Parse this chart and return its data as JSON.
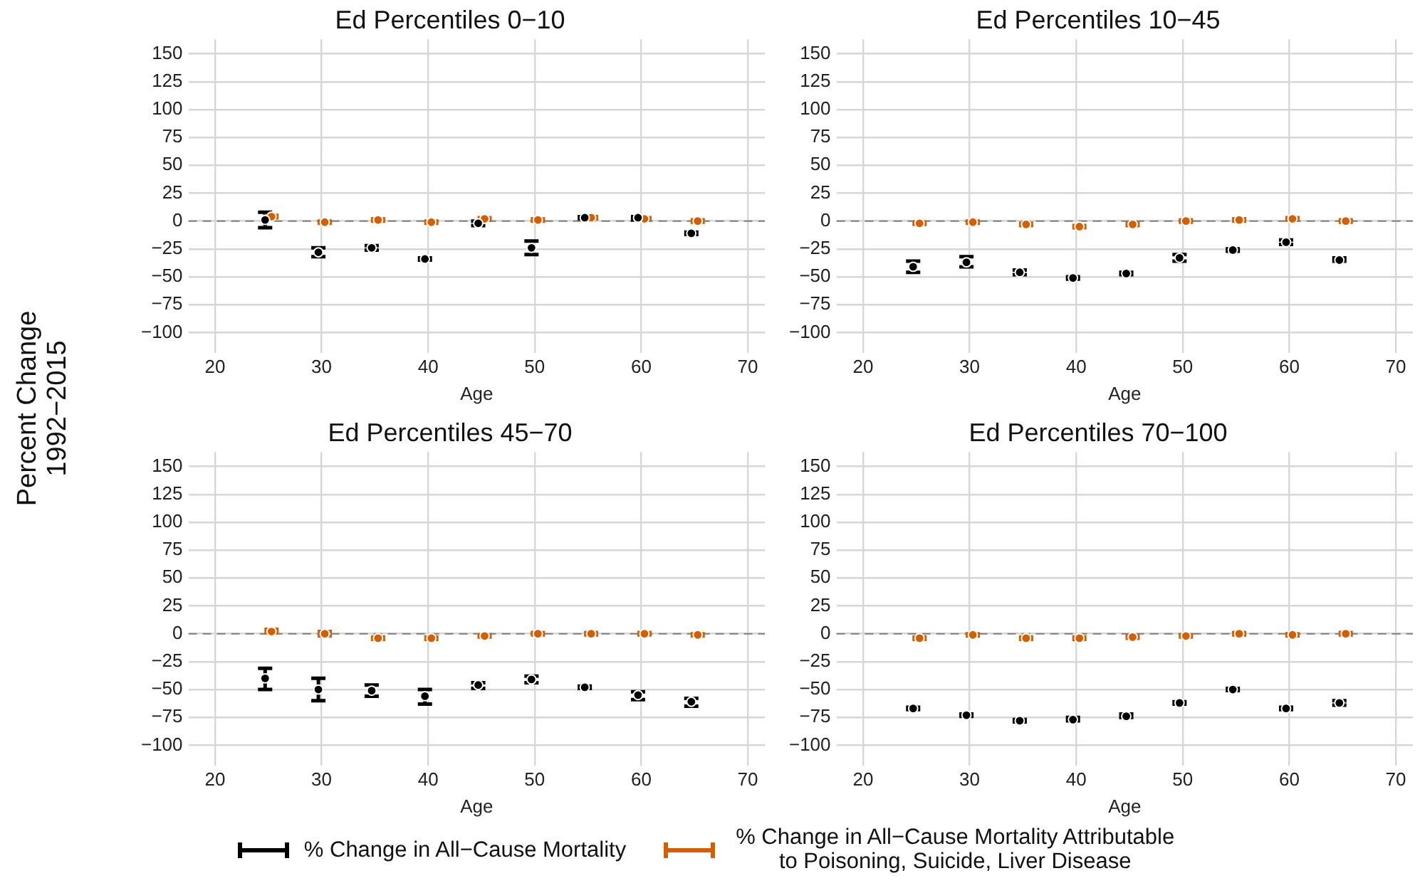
{
  "chart_data": [
    {
      "type": "scatter",
      "title": "Ed Percentiles 0−10",
      "xlabel": "Age",
      "ylabel": "Percent Change\n1992−2015",
      "xlim": [
        17.5,
        71.6
      ],
      "ylim": [
        -118,
        163
      ],
      "xticks": [
        20,
        30,
        40,
        50,
        60,
        70
      ],
      "yticks": [
        -100,
        -75,
        -50,
        -25,
        0,
        25,
        50,
        75,
        100,
        125,
        150
      ],
      "grid": true,
      "marker": "circle",
      "legend": "bottom",
      "ref_lines": [
        {
          "axis": "y",
          "value": 0,
          "color": "#808080",
          "line_style": "dashed"
        }
      ],
      "series": [
        {
          "name": "% Change in All−Cause Mortality",
          "color": "#000000",
          "x": [
            24.7,
            29.7,
            34.7,
            39.7,
            44.7,
            49.7,
            54.7,
            59.7,
            64.7
          ],
          "values": [
            1,
            -28,
            -24,
            -34,
            -2,
            -24,
            3,
            3,
            -11
          ],
          "errors": [
            [
              -6,
              8
            ],
            [
              -32,
              -24
            ],
            [
              -26,
              -22
            ],
            [
              -35,
              -33
            ],
            [
              -4,
              0
            ],
            [
              -30,
              -18
            ],
            [
              2,
              4
            ],
            [
              1,
              4
            ],
            [
              -12,
              -10
            ]
          ]
        },
        {
          "name": "% Change in All−Cause Mortality Attributable to Poisoning, Suicide, Liver Disease",
          "color": "#d55e00",
          "x": [
            25.3,
            30.3,
            35.3,
            40.3,
            45.3,
            50.3,
            55.3,
            60.3,
            65.3
          ],
          "values": [
            4,
            -1,
            1,
            -1,
            2,
            1,
            3,
            2,
            0
          ],
          "errors": [
            [
              3,
              5
            ],
            [
              -2,
              0
            ],
            [
              0,
              2
            ],
            [
              -2,
              0
            ],
            [
              1,
              3
            ],
            [
              0,
              2
            ],
            [
              2,
              4
            ],
            [
              1,
              3
            ],
            [
              -1,
              1
            ]
          ]
        }
      ]
    },
    {
      "type": "scatter",
      "title": "Ed Percentiles 10−45",
      "xlabel": "Age",
      "xlim": [
        17.5,
        71.6
      ],
      "ylim": [
        -118,
        163
      ],
      "xticks": [
        20,
        30,
        40,
        50,
        60,
        70
      ],
      "yticks": [
        -100,
        -75,
        -50,
        -25,
        0,
        25,
        50,
        75,
        100,
        125,
        150
      ],
      "grid": true,
      "marker": "circle",
      "ref_lines": [
        {
          "axis": "y",
          "value": 0,
          "color": "#808080",
          "line_style": "dashed"
        }
      ],
      "series": [
        {
          "color": "#000000",
          "x": [
            24.7,
            29.7,
            34.7,
            39.7,
            44.7,
            49.7,
            54.7,
            59.7,
            64.7
          ],
          "values": [
            -41,
            -37,
            -46,
            -51,
            -47,
            -33,
            -26,
            -19,
            -35
          ],
          "errors": [
            [
              -46,
              -36
            ],
            [
              -41,
              -32
            ],
            [
              -48,
              -44
            ],
            [
              -52,
              -50
            ],
            [
              -48,
              -46
            ],
            [
              -36,
              -30
            ],
            [
              -27,
              -25
            ],
            [
              -21,
              -17
            ],
            [
              -36,
              -33
            ]
          ]
        },
        {
          "color": "#d55e00",
          "x": [
            25.3,
            30.3,
            35.3,
            40.3,
            45.3,
            50.3,
            55.3,
            60.3,
            65.3
          ],
          "values": [
            -2,
            -1,
            -3,
            -5,
            -3,
            0,
            1,
            2,
            0
          ],
          "errors": [
            [
              -3,
              -1
            ],
            [
              -2,
              0
            ],
            [
              -4,
              -2
            ],
            [
              -6,
              -4
            ],
            [
              -4,
              -2
            ],
            [
              -1,
              1
            ],
            [
              0,
              2
            ],
            [
              1,
              3
            ],
            [
              -1,
              1
            ]
          ]
        }
      ]
    },
    {
      "type": "scatter",
      "title": "Ed Percentiles 45−70",
      "xlabel": "Age",
      "xlim": [
        17.5,
        71.6
      ],
      "ylim": [
        -118,
        163
      ],
      "xticks": [
        20,
        30,
        40,
        50,
        60,
        70
      ],
      "yticks": [
        -100,
        -75,
        -50,
        -25,
        0,
        25,
        50,
        75,
        100,
        125,
        150
      ],
      "grid": true,
      "marker": "circle",
      "ref_lines": [
        {
          "axis": "y",
          "value": 0,
          "color": "#808080",
          "line_style": "dashed"
        }
      ],
      "series": [
        {
          "color": "#000000",
          "x": [
            24.7,
            29.7,
            34.7,
            39.7,
            44.7,
            49.7,
            54.7,
            59.7,
            64.7
          ],
          "values": [
            -40,
            -50,
            -51,
            -56,
            -46,
            -41,
            -48,
            -55,
            -61
          ],
          "errors": [
            [
              -50,
              -31
            ],
            [
              -60,
              -40
            ],
            [
              -56,
              -46
            ],
            [
              -63,
              -50
            ],
            [
              -49,
              -44
            ],
            [
              -44,
              -38
            ],
            [
              -49,
              -47
            ],
            [
              -59,
              -52
            ],
            [
              -65,
              -58
            ]
          ]
        },
        {
          "color": "#d55e00",
          "x": [
            25.3,
            30.3,
            35.3,
            40.3,
            45.3,
            50.3,
            55.3,
            60.3,
            65.3
          ],
          "values": [
            2,
            0,
            -4,
            -4,
            -2,
            0,
            0,
            0,
            -1
          ],
          "errors": [
            [
              1,
              4
            ],
            [
              -2,
              2
            ],
            [
              -5,
              -3
            ],
            [
              -5,
              -3
            ],
            [
              -3,
              -1
            ],
            [
              -1,
              1
            ],
            [
              -1,
              1
            ],
            [
              -1,
              1
            ],
            [
              -2,
              0
            ]
          ]
        }
      ]
    },
    {
      "type": "scatter",
      "title": "Ed Percentiles 70−100",
      "xlabel": "Age",
      "xlim": [
        17.5,
        71.6
      ],
      "ylim": [
        -118,
        163
      ],
      "xticks": [
        20,
        30,
        40,
        50,
        60,
        70
      ],
      "yticks": [
        -100,
        -75,
        -50,
        -25,
        0,
        25,
        50,
        75,
        100,
        125,
        150
      ],
      "grid": true,
      "marker": "circle",
      "ref_lines": [
        {
          "axis": "y",
          "value": 0,
          "color": "#808080",
          "line_style": "dashed"
        }
      ],
      "series": [
        {
          "color": "#000000",
          "x": [
            24.7,
            29.7,
            34.7,
            39.7,
            44.7,
            49.7,
            54.7,
            59.7,
            64.7
          ],
          "values": [
            -67,
            -73,
            -78,
            -77,
            -74,
            -62,
            -50,
            -67,
            -62
          ],
          "errors": [
            [
              -68,
              -66
            ],
            [
              -74,
              -72
            ],
            [
              -79,
              -77
            ],
            [
              -78,
              -75
            ],
            [
              -75,
              -72
            ],
            [
              -63,
              -61
            ],
            [
              -51,
              -49
            ],
            [
              -68,
              -66
            ],
            [
              -64,
              -60
            ]
          ]
        },
        {
          "color": "#d55e00",
          "x": [
            25.3,
            30.3,
            35.3,
            40.3,
            45.3,
            50.3,
            55.3,
            60.3,
            65.3
          ],
          "values": [
            -4,
            -1,
            -4,
            -4,
            -3,
            -2,
            0,
            -1,
            0
          ],
          "errors": [
            [
              -5,
              -3
            ],
            [
              -2,
              0
            ],
            [
              -5,
              -3
            ],
            [
              -5,
              -3
            ],
            [
              -4,
              -2
            ],
            [
              -3,
              -1
            ],
            [
              -1,
              1
            ],
            [
              -2,
              0
            ],
            [
              -1,
              1
            ]
          ]
        }
      ]
    }
  ]
}
